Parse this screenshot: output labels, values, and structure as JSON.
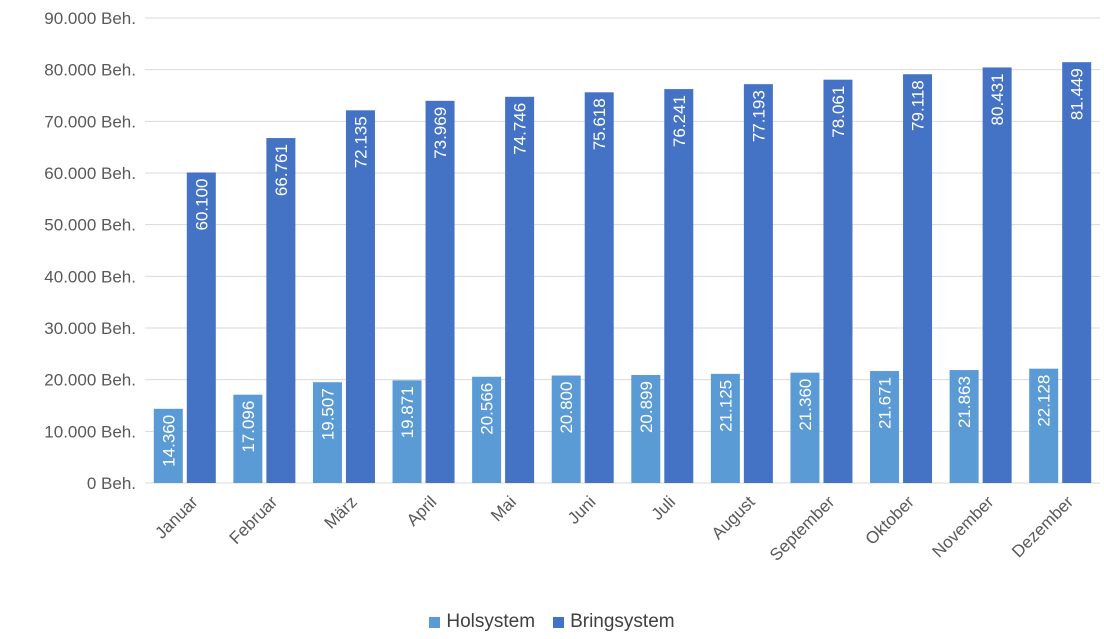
{
  "chart_data": {
    "type": "bar",
    "title": "",
    "xlabel": "",
    "ylabel": "",
    "ylim": [
      0,
      90000
    ],
    "ytick_values": [
      0,
      10000,
      20000,
      30000,
      40000,
      50000,
      60000,
      70000,
      80000,
      90000
    ],
    "ytick_labels": [
      "0 Beh.",
      "10.000 Beh.",
      "20.000 Beh.",
      "30.000 Beh.",
      "40.000 Beh.",
      "50.000 Beh.",
      "60.000 Beh.",
      "70.000 Beh.",
      "80.000 Beh.",
      "90.000 Beh."
    ],
    "categories": [
      "Januar",
      "Februar",
      "März",
      "April",
      "Mai",
      "Juni",
      "Juli",
      "August",
      "September",
      "Oktober",
      "November",
      "Dezember"
    ],
    "series": [
      {
        "name": "Holsystem",
        "color": "#5b9bd5",
        "values": [
          14360,
          17096,
          19507,
          19871,
          20566,
          20800,
          20899,
          21125,
          21360,
          21671,
          21863,
          22128
        ],
        "labels": [
          "14.360",
          "17.096",
          "19.507",
          "19.871",
          "20.566",
          "20.800",
          "20.899",
          "21.125",
          "21.360",
          "21.671",
          "21.863",
          "22.128"
        ]
      },
      {
        "name": "Bringsystem",
        "color": "#4472c4",
        "values": [
          60100,
          66761,
          72135,
          73969,
          74746,
          75618,
          76241,
          77193,
          78061,
          79118,
          80431,
          81449
        ],
        "labels": [
          "60.100",
          "66.761",
          "72.135",
          "73.969",
          "74.746",
          "75.618",
          "76.241",
          "77.193",
          "78.061",
          "79.118",
          "80.431",
          "81.449"
        ]
      }
    ],
    "grid": true,
    "legend_position": "bottom"
  }
}
